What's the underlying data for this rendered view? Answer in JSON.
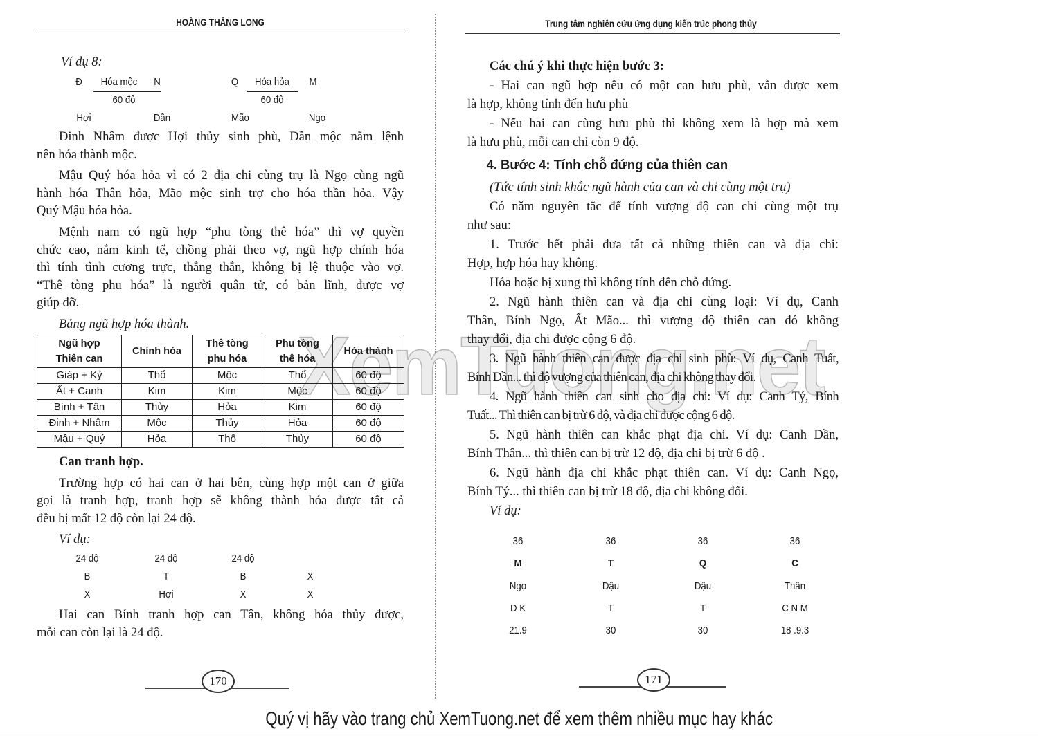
{
  "left_page": {
    "running_head": "HOÀNG THĂNG LONG",
    "example8": {
      "label": "Ví dụ 8:",
      "pair1": {
        "left": "Đ",
        "top": "Hóa mộc",
        "right": "N",
        "bottom": "60 độ",
        "branch_left": "Hợi",
        "branch_right": "Dần"
      },
      "pair2": {
        "left": "Q",
        "top": "Hóa hỏa",
        "right": "M",
        "bottom": "60 độ",
        "branch_left": "Mão",
        "branch_right": "Ngọ"
      }
    },
    "paragraphs_1": [
      {
        "lines": [
          "Đinh Nhâm được Hợi thủy sinh phù, Dần mộc nắm lệnh",
          "nên hóa thành mộc."
        ]
      },
      {
        "lines": [
          "Mậu Quý hóa hỏa vì có 2 địa chi cùng trụ là Ngọ cùng ngũ",
          "hành hóa Thân hỏa, Mão mộc sinh trợ cho hóa thần hỏa. Vậy",
          "Quý Mậu hóa hỏa."
        ]
      },
      {
        "lines": [
          "Mệnh nam có ngũ hợp “phu tòng thê hóa” thì vợ quyền",
          "chức cao, nắm kinh tế, chồng phải theo vợ, ngũ hợp chính hóa",
          "thì tính tình cương trực, thẳng thắn, không bị lệ thuộc vào vợ.",
          "“Thê tòng phu hóa” là người quân tử, có bản lĩnh, được vợ",
          "giúp đỡ."
        ],
        "noindent_from": 1
      },
      {
        "lines": [
          "Bảng ngũ hợp hóa thành."
        ],
        "style": "italic"
      }
    ],
    "table": {
      "headers": [
        [
          "Ngũ hợp",
          "Thiên can"
        ],
        [
          "Chính hóa"
        ],
        [
          "Thê tòng",
          "phu hóa"
        ],
        [
          "Phu tòng",
          "thê hóa"
        ],
        [
          "Hóa thành"
        ]
      ],
      "rows": [
        [
          "Giáp + Kỷ",
          "Thổ",
          "Mộc",
          "Thổ",
          "60 độ"
        ],
        [
          "Ất + Canh",
          "Kim",
          "Kim",
          "Mộc",
          "60 độ"
        ],
        [
          "Bính + Tân",
          "Thủy",
          "Hỏa",
          "Kim",
          "60 độ"
        ],
        [
          "Đinh + Nhâm",
          "Mộc",
          "Thủy",
          "Hỏa",
          "60 độ"
        ],
        [
          "Mậu + Quý",
          "Hỏa",
          "Thổ",
          "Thủy",
          "60 độ"
        ]
      ]
    },
    "paragraphs_2": [
      {
        "lines": [
          "Can tranh hợp."
        ],
        "style": "bold"
      },
      {
        "lines": [
          "Trường hợp có hai can ở hai bên, cùng hợp một can ở giữa",
          "gọi là tranh hợp, tranh hợp sẽ không thành hóa được tất cả",
          "đều bị mất 12 độ còn lại 24 độ."
        ]
      },
      {
        "lines": [
          "Ví dụ:"
        ],
        "style": "italic"
      }
    ],
    "example_grid": [
      [
        "24 độ",
        "24 độ",
        "24 độ",
        ""
      ],
      [
        "B",
        "T",
        "B",
        "X"
      ],
      [
        "X",
        "Hợi",
        "X",
        "X"
      ]
    ],
    "paragraphs_3": [
      {
        "lines": [
          "Hai can Bính tranh hợp can Tân, không hóa thủy được,",
          "mỗi can còn lại là 24 độ."
        ]
      }
    ],
    "page_number": "170"
  },
  "right_page": {
    "running_head": "Trung tâm nghiên cứu ứng dụng kiến trúc phong thủy",
    "paragraphs": [
      {
        "lines": [
          "Các chú ý khi thực hiện bước 3:"
        ],
        "style": "bold"
      },
      {
        "lines": [
          "- Hai can ngũ hợp nếu có một can hưu phù, vẫn được xem",
          "là hợp, không tính đến hưu phù"
        ]
      },
      {
        "lines": [
          "- Nếu hai can cùng hưu phù thì không xem là hợp mà xem",
          "là hưu phù, mỗi can chỉ còn 9 độ."
        ]
      },
      {
        "lines": [
          "4. Bước 4: Tính chỗ đứng của thiên can"
        ],
        "style": "heading"
      },
      {
        "lines": [
          "(Tức tính sinh khắc ngũ hành của can và chi cùng một trụ)"
        ],
        "style": "italic"
      },
      {
        "lines": [
          "Có năm nguyên tắc để tính vượng độ can chi cùng một trụ",
          "như sau:"
        ]
      },
      {
        "lines": [
          "1. Trước hết phải đưa tất cả những thiên can và địa chi:",
          "Hợp, hợp hóa hay không."
        ]
      },
      {
        "lines": [
          "Hóa hoặc bị xung thì không tính đến chỗ đứng."
        ]
      },
      {
        "lines": [
          "2. Ngũ hành thiên can và địa chi cùng loại: Ví dụ, Canh",
          "Thân, Bính Ngọ, Ất Mão... thì vượng độ thiên can đó không",
          "thay đổi, địa chi được cộng 6 độ."
        ]
      },
      {
        "lines": [
          "3. Ngũ hành thiên can được địa chi sinh phù: Ví dụ, Canh Tuất,",
          "Bính Dần... thì độ vượng của thiên can, địa chi không thay đổi."
        ],
        "style": "tight"
      },
      {
        "lines": [
          "4. Ngũ hành thiên can sinh cho địa chi: Ví dụ: Canh Tý, Bính",
          "Tuất... Thì thiên can bị trừ 6 độ, và địa chi được cộng 6 độ."
        ],
        "style": "tight"
      },
      {
        "lines": [
          "5. Ngũ hành thiên can khắc phạt địa chi. Ví dụ: Canh Dần,",
          "Bính Thân... thì thiên can bị trừ 12 độ, địa chi bị trừ 6 độ ."
        ]
      },
      {
        "lines": [
          "6. Ngũ hành địa chi khắc phạt thiên can. Ví dụ: Canh Ngọ,",
          "Bính Tý... thì thiên can bị trừ 18 độ, địa chi không đổi."
        ]
      },
      {
        "lines": [
          "Ví dụ:"
        ],
        "style": "italic"
      }
    ],
    "example_grid": [
      [
        "36",
        "36",
        "36",
        "36"
      ],
      [
        "M",
        "T",
        "Q",
        "C"
      ],
      [
        "Ngọ",
        "Dậu",
        "Dậu",
        "Thân"
      ],
      [
        "D K",
        "T",
        "T",
        "C N M"
      ],
      [
        "21.9",
        "30",
        "30",
        "18 .9.3"
      ]
    ],
    "page_number": "171"
  },
  "watermark": "XemTuong.net",
  "footer_banner": "Quý vị hãy vào trang chủ XemTuong.net để xem thêm nhiều mục hay khác"
}
